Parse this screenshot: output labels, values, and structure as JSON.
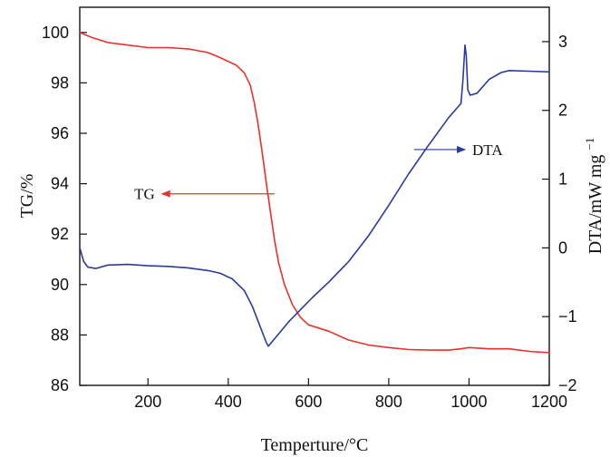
{
  "chart_data": {
    "type": "line",
    "xlabel": "Temperture/°C",
    "ylabel_left": "TG/%",
    "ylabel_right_main": "DTA/mW mg",
    "ylabel_right_sup": "−1",
    "xlim": [
      30,
      1200
    ],
    "ylim_left": [
      86,
      101
    ],
    "ylim_right": [
      -2,
      3.5
    ],
    "x_ticks": [
      200,
      400,
      600,
      800,
      1000,
      1200
    ],
    "x_tick_labels": [
      "200",
      "400",
      "600",
      "800",
      "1000",
      "1200"
    ],
    "y_left_ticks": [
      86,
      88,
      90,
      92,
      94,
      96,
      98,
      100
    ],
    "y_left_tick_labels": [
      "86",
      "88",
      "90",
      "92",
      "94",
      "96",
      "98",
      "100"
    ],
    "y_right_ticks": [
      -2,
      -1,
      0,
      1,
      2,
      3
    ],
    "y_right_tick_labels": [
      "−2",
      "−1",
      "0",
      "1",
      "2",
      "3"
    ],
    "grid": false,
    "series": [
      {
        "name": "TG",
        "axis": "left",
        "color": "#e8312a",
        "points": [
          [
            30,
            100.0
          ],
          [
            60,
            99.8
          ],
          [
            100,
            99.6
          ],
          [
            150,
            99.5
          ],
          [
            200,
            99.4
          ],
          [
            250,
            99.4
          ],
          [
            300,
            99.35
          ],
          [
            350,
            99.2
          ],
          [
            380,
            99.0
          ],
          [
            420,
            98.7
          ],
          [
            440,
            98.4
          ],
          [
            455,
            97.9
          ],
          [
            465,
            97.2
          ],
          [
            475,
            96.3
          ],
          [
            485,
            95.2
          ],
          [
            495,
            94.0
          ],
          [
            505,
            92.9
          ],
          [
            515,
            91.8
          ],
          [
            525,
            90.9
          ],
          [
            540,
            90.0
          ],
          [
            560,
            89.2
          ],
          [
            580,
            88.7
          ],
          [
            600,
            88.4
          ],
          [
            650,
            88.15
          ],
          [
            700,
            87.8
          ],
          [
            750,
            87.6
          ],
          [
            800,
            87.5
          ],
          [
            850,
            87.42
          ],
          [
            900,
            87.4
          ],
          [
            950,
            87.4
          ],
          [
            980,
            87.45
          ],
          [
            1000,
            87.5
          ],
          [
            1050,
            87.45
          ],
          [
            1100,
            87.45
          ],
          [
            1150,
            87.35
          ],
          [
            1200,
            87.3
          ]
        ]
      },
      {
        "name": "DTA",
        "axis": "right",
        "color": "#2b3aa0",
        "points": [
          [
            30,
            0.0
          ],
          [
            40,
            -0.2
          ],
          [
            50,
            -0.28
          ],
          [
            70,
            -0.3
          ],
          [
            100,
            -0.25
          ],
          [
            150,
            -0.24
          ],
          [
            200,
            -0.26
          ],
          [
            250,
            -0.27
          ],
          [
            300,
            -0.29
          ],
          [
            350,
            -0.33
          ],
          [
            380,
            -0.37
          ],
          [
            410,
            -0.45
          ],
          [
            440,
            -0.62
          ],
          [
            460,
            -0.85
          ],
          [
            480,
            -1.15
          ],
          [
            495,
            -1.38
          ],
          [
            500,
            -1.43
          ],
          [
            510,
            -1.36
          ],
          [
            530,
            -1.22
          ],
          [
            550,
            -1.08
          ],
          [
            580,
            -0.9
          ],
          [
            610,
            -0.72
          ],
          [
            650,
            -0.5
          ],
          [
            700,
            -0.2
          ],
          [
            750,
            0.18
          ],
          [
            800,
            0.62
          ],
          [
            850,
            1.08
          ],
          [
            900,
            1.5
          ],
          [
            950,
            1.9
          ],
          [
            980,
            2.1
          ],
          [
            985,
            2.45
          ],
          [
            990,
            2.95
          ],
          [
            993,
            2.8
          ],
          [
            997,
            2.3
          ],
          [
            1003,
            2.22
          ],
          [
            1020,
            2.25
          ],
          [
            1050,
            2.45
          ],
          [
            1080,
            2.55
          ],
          [
            1100,
            2.58
          ],
          [
            1150,
            2.57
          ],
          [
            1200,
            2.56
          ]
        ]
      }
    ],
    "annotations": [
      {
        "text": "TG",
        "color": "#e8312a",
        "arrow_from": [
          515,
          93.6
        ],
        "arrow_to": [
          235,
          93.6
        ]
      },
      {
        "text": "DTA",
        "color": "#2b3aa0",
        "arrow_from": [
          863,
          1.43
        ],
        "arrow_to": [
          990,
          1.43
        ]
      }
    ]
  }
}
